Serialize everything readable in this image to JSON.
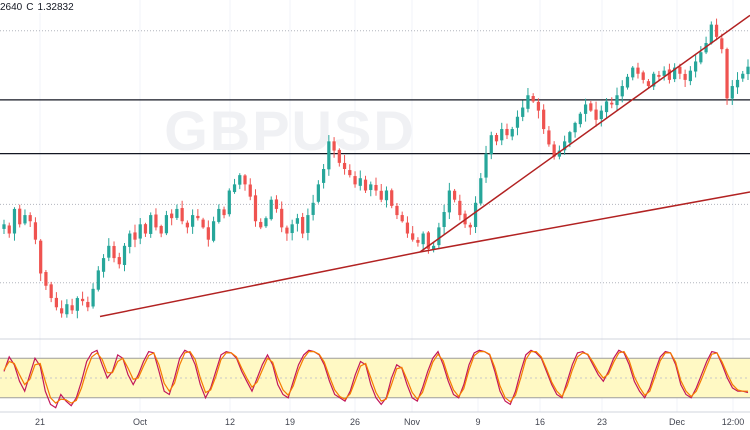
{
  "header": {
    "low_text": "2640",
    "close_label": "C",
    "close_value": "1.32832"
  },
  "watermark": "GBPUSD",
  "colors": {
    "up": "#26a69a",
    "down": "#ef5350",
    "trendline": "#b22222",
    "k_line": "#c2185b",
    "d_line": "#f57c00",
    "osc_band": "#fff9c4",
    "grid": "#b2b5be"
  },
  "chart_data": [
    {
      "type": "candlestick",
      "ylim": [
        1.24,
        1.35
      ],
      "x_ticks": [
        "21",
        "Oct",
        "12",
        "19",
        "26",
        "Nov",
        "9",
        "16",
        "23",
        "Dec",
        "12:00"
      ],
      "horizontal_levels": [
        {
          "value": 1.34,
          "style": "dotted"
        },
        {
          "value": 1.3175,
          "style": "solid"
        },
        {
          "value": 1.3,
          "style": "solid"
        },
        {
          "value": 1.2835,
          "style": "dotted"
        },
        {
          "value": 1.258,
          "style": "dotted"
        }
      ],
      "trendlines": [
        {
          "from": [
            "Sep 25",
            1.247
          ],
          "to": [
            "Nov 3",
            1.268
          ]
        },
        {
          "from": [
            "Nov 3",
            1.268
          ],
          "to": [
            "Dec 4",
            1.345
          ]
        },
        {
          "from": [
            "Nov 3",
            1.268
          ],
          "to": [
            "Dec 7",
            1.2875
          ]
        }
      ],
      "series": [
        {
          "close_path": [
            1.277,
            1.274,
            1.282,
            1.277,
            1.28,
            1.278,
            1.272,
            1.261,
            1.257,
            1.253,
            1.25,
            1.248,
            1.251,
            1.249,
            1.253,
            1.252,
            1.25,
            1.256,
            1.262,
            1.266,
            1.27,
            1.266,
            1.264,
            1.27,
            1.274,
            1.272,
            1.277,
            1.274,
            1.28,
            1.276,
            1.274,
            1.28,
            1.279,
            1.282,
            1.278,
            1.276,
            1.28,
            1.279,
            1.276,
            1.272,
            1.278,
            1.282,
            1.28,
            1.288,
            1.29,
            1.293,
            1.29,
            1.286,
            1.278,
            1.276,
            1.279,
            1.285,
            1.282,
            1.276,
            1.274,
            1.277,
            1.279,
            1.274,
            1.28,
            1.284,
            1.29,
            1.295,
            1.304,
            1.301,
            1.297,
            1.295,
            1.293,
            1.29,
            1.292,
            1.288,
            1.29,
            1.288,
            1.285,
            1.288,
            1.283,
            1.28,
            1.278,
            1.274,
            1.272,
            1.271,
            1.274,
            1.269,
            1.27,
            1.276,
            1.281,
            1.288,
            1.285,
            1.28,
            1.277,
            1.276,
            1.284,
            1.292,
            1.3,
            1.306,
            1.304,
            1.308,
            1.306,
            1.308,
            1.312,
            1.315,
            1.319,
            1.317,
            1.314,
            1.308,
            1.303,
            1.299,
            1.301,
            1.304,
            1.307,
            1.31,
            1.313,
            1.316,
            1.314,
            1.311,
            1.314,
            1.317,
            1.316,
            1.319,
            1.322,
            1.325,
            1.328,
            1.326,
            1.324,
            1.322,
            1.326,
            1.325,
            1.327,
            1.324,
            1.328,
            1.326,
            1.324,
            1.327,
            1.33,
            1.333,
            1.336,
            1.342,
            1.338,
            1.334,
            1.318,
            1.322,
            1.324,
            1.326,
            1.3283
          ]
        }
      ]
    },
    {
      "type": "line",
      "name_visible": false,
      "ylim": [
        0,
        100
      ],
      "band": [
        20,
        80
      ],
      "series": [
        {
          "role": "k",
          "values": [
            60,
            82,
            70,
            45,
            30,
            55,
            80,
            68,
            30,
            10,
            5,
            25,
            15,
            8,
            20,
            45,
            75,
            88,
            92,
            70,
            50,
            60,
            85,
            80,
            55,
            40,
            55,
            75,
            90,
            88,
            60,
            30,
            25,
            50,
            80,
            92,
            88,
            70,
            40,
            20,
            35,
            60,
            85,
            90,
            88,
            80,
            60,
            45,
            30,
            50,
            70,
            85,
            70,
            40,
            25,
            20,
            45,
            70,
            85,
            92,
            90,
            85,
            70,
            45,
            25,
            20,
            15,
            30,
            55,
            75,
            70,
            40,
            20,
            10,
            20,
            50,
            70,
            65,
            40,
            20,
            15,
            35,
            60,
            80,
            90,
            70,
            45,
            25,
            20,
            40,
            70,
            88,
            92,
            90,
            85,
            60,
            30,
            15,
            10,
            30,
            60,
            85,
            92,
            88,
            80,
            60,
            40,
            25,
            20,
            45,
            70,
            88,
            90,
            85,
            70,
            55,
            45,
            60,
            80,
            92,
            88,
            70,
            45,
            30,
            20,
            35,
            60,
            82,
            90,
            88,
            70,
            40,
            25,
            20,
            35,
            55,
            75,
            90,
            88,
            70,
            50,
            35,
            30,
            30,
            28
          ]
        },
        {
          "role": "d",
          "values": [
            62,
            75,
            72,
            55,
            40,
            48,
            70,
            72,
            45,
            20,
            12,
            18,
            17,
            12,
            16,
            35,
            62,
            82,
            88,
            78,
            58,
            58,
            75,
            80,
            65,
            48,
            50,
            68,
            84,
            88,
            70,
            42,
            30,
            42,
            70,
            88,
            90,
            78,
            50,
            28,
            32,
            52,
            78,
            88,
            88,
            82,
            65,
            50,
            36,
            44,
            62,
            80,
            74,
            50,
            32,
            24,
            38,
            62,
            80,
            90,
            90,
            86,
            74,
            52,
            32,
            22,
            18,
            26,
            46,
            68,
            72,
            50,
            28,
            15,
            18,
            40,
            64,
            66,
            48,
            28,
            18,
            28,
            52,
            74,
            86,
            76,
            52,
            32,
            22,
            34,
            62,
            84,
            90,
            90,
            86,
            66,
            38,
            20,
            14,
            24,
            50,
            78,
            90,
            90,
            82,
            64,
            44,
            30,
            22,
            38,
            62,
            82,
            88,
            86,
            74,
            60,
            50,
            56,
            74,
            88,
            90,
            76,
            52,
            36,
            24,
            30,
            52,
            76,
            88,
            88,
            74,
            46,
            30,
            22,
            30,
            48,
            68,
            86,
            88,
            74,
            56,
            40,
            32,
            30,
            30
          ]
        }
      ]
    }
  ]
}
